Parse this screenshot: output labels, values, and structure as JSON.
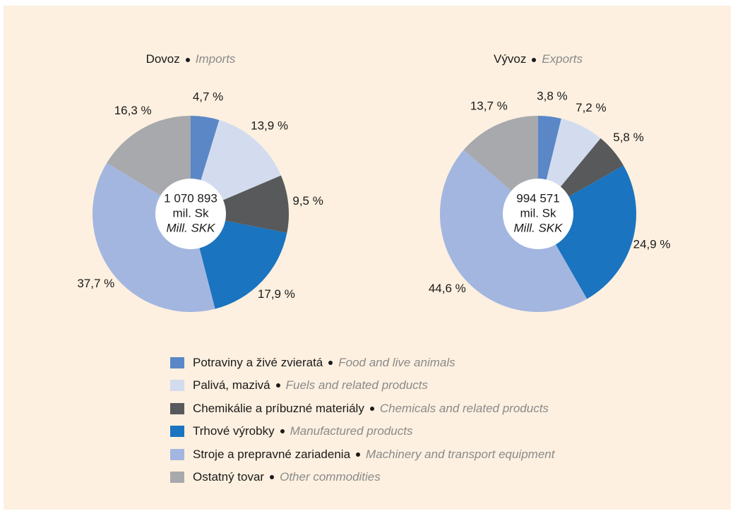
{
  "chart_data": [
    {
      "type": "pie",
      "title": "Dovoz",
      "title_en": "Imports",
      "center_text": [
        "1 070 893",
        "mil. Sk",
        "Mill. SKK"
      ],
      "values": [
        4.7,
        13.9,
        9.5,
        17.9,
        37.7,
        16.3
      ],
      "value_labels": [
        "4,7 %",
        "13,9 %",
        "9,5 %",
        "17,9 %",
        "37,7 %",
        "16,3 %"
      ]
    },
    {
      "type": "pie",
      "title": "Vývoz",
      "title_en": "Exports",
      "center_text": [
        "994 571",
        "mil. Sk",
        "Mill. SKK"
      ],
      "values": [
        3.8,
        7.2,
        5.8,
        24.9,
        44.6,
        13.7
      ],
      "value_labels": [
        "3,8 %",
        "7,2 %",
        "5,8 %",
        "24,9 %",
        "44,6 %",
        "13,7 %"
      ]
    }
  ],
  "legend": [
    {
      "name": "Potraviny a živé zvieratá",
      "name_en": "Food and live animals",
      "color": "#5b87c7"
    },
    {
      "name": "Palivá, mazivá",
      "name_en": "Fuels and related products",
      "color": "#d3dcef"
    },
    {
      "name": "Chemikálie a príbuzné materiály",
      "name_en": "Chemicals and related products",
      "color": "#58595b"
    },
    {
      "name": "Trhové výrobky",
      "name_en": "Manufactured products",
      "color": "#1a74bf"
    },
    {
      "name": "Stroje a prepravné zariadenia",
      "name_en": "Machinery and transport equipment",
      "color": "#a3b6e0"
    },
    {
      "name": "Ostatný tovar",
      "name_en": "Other commodities",
      "color": "#a7a9ac"
    }
  ]
}
